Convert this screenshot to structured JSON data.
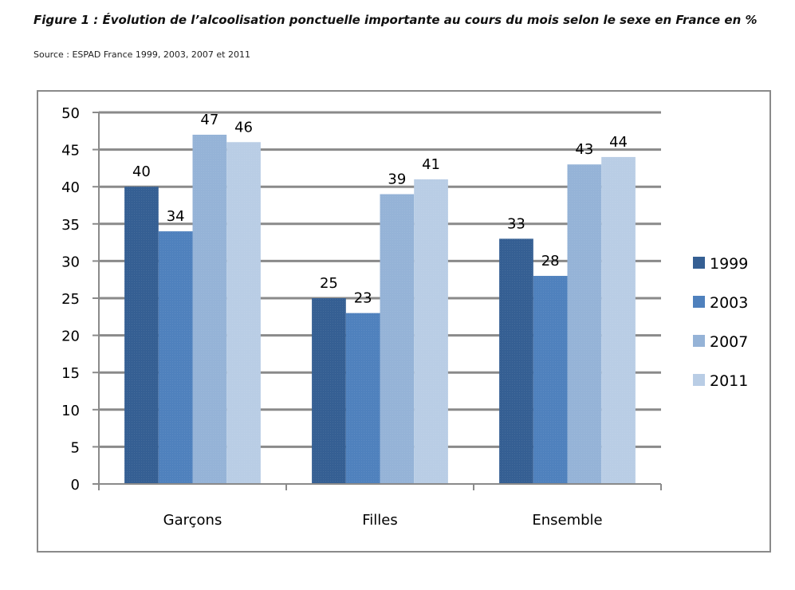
{
  "header": {
    "title": "Figure 1 : Évolution de l’alcoolisation ponctuelle importante au cours du mois selon le sexe en France en %",
    "source": "Source : ESPAD France 1999, 2003, 2007 et 2011"
  },
  "chart_data": {
    "type": "bar",
    "title": "Évolution de l’alcoolisation ponctuelle importante au cours du mois selon le sexe en France",
    "xlabel": "",
    "ylabel": "en %",
    "categories": [
      "Garçons",
      "Filles",
      "Ensemble"
    ],
    "series": [
      {
        "name": "1999",
        "color": "#355f93",
        "values": [
          40,
          25,
          33
        ]
      },
      {
        "name": "2003",
        "color": "#4f81bd",
        "values": [
          34,
          23,
          28
        ]
      },
      {
        "name": "2007",
        "color": "#95b3d7",
        "values": [
          47,
          39,
          43
        ]
      },
      {
        "name": "2011",
        "color": "#b9cde5",
        "values": [
          46,
          41,
          44
        ]
      }
    ],
    "ylim": [
      0,
      50
    ],
    "yticks": [
      0,
      5,
      10,
      15,
      20,
      25,
      30,
      35,
      40,
      45,
      50
    ],
    "grid": true,
    "legend": "right",
    "data_labels": true
  }
}
